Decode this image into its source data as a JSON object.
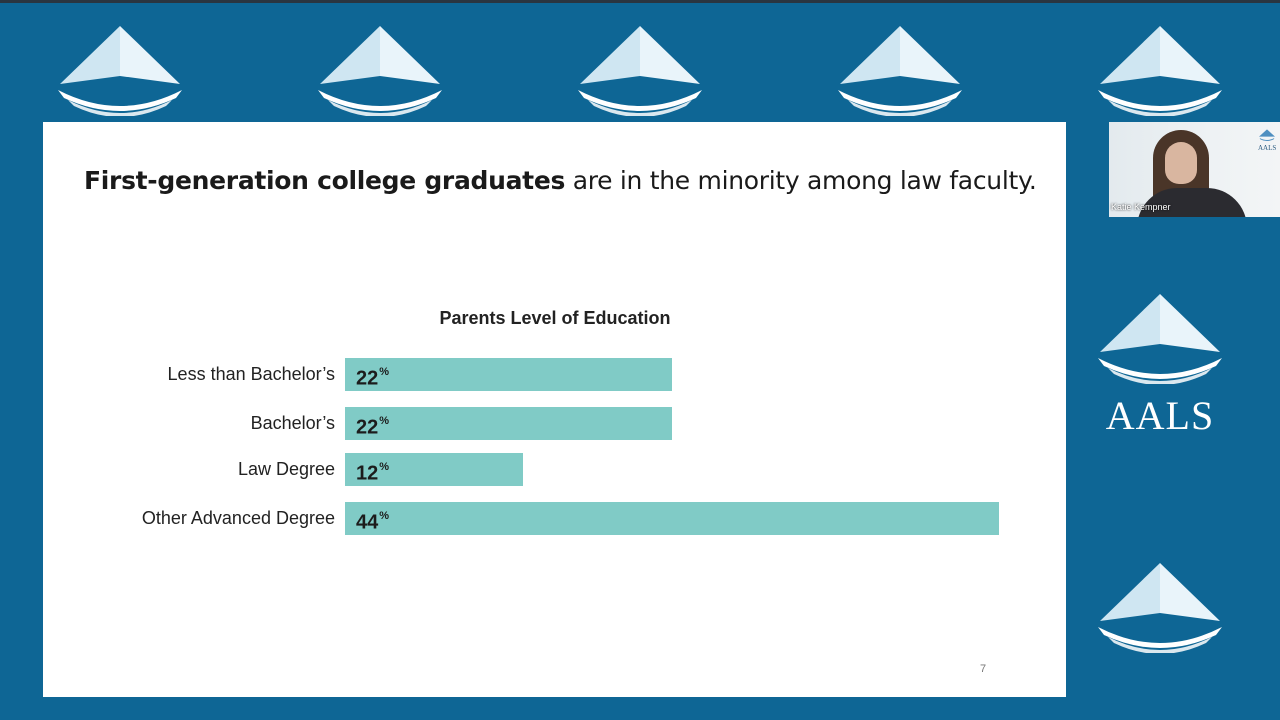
{
  "slide": {
    "title_bold": "First-generation college graduates",
    "title_rest": " are in the minority among law faculty.",
    "page_number": "7"
  },
  "chart_data": {
    "type": "bar",
    "orientation": "horizontal",
    "title": "Parents Level of Education",
    "categories": [
      "Less than Bachelor’s",
      "Bachelor’s",
      "Law Degree",
      "Other Advanced Degree"
    ],
    "values": [
      22,
      22,
      12,
      44
    ],
    "value_labels": [
      "22",
      "22",
      "12",
      "44"
    ],
    "unit": "%",
    "bar_color": "#80cbc6",
    "xlim": [
      0,
      44
    ]
  },
  "video": {
    "participant_name": "Katie Kempner",
    "logo_text": "AALS"
  },
  "branding": {
    "org_name": "AALS",
    "background_color": "#0e6695",
    "logo_color": "#ffffff"
  }
}
